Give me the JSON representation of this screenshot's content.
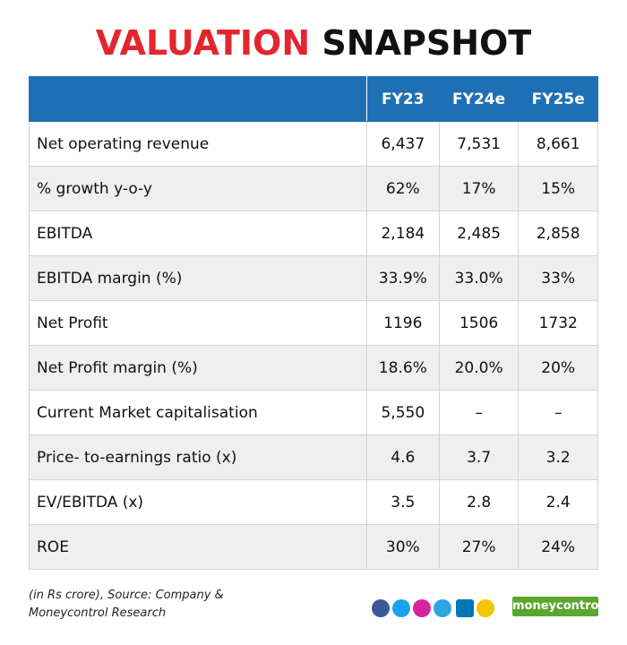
{
  "header": {
    "title_highlight": "VALUATION",
    "title_rest": "SNAPSHOT"
  },
  "table": {
    "columns": [
      "",
      "FY23",
      "FY24e",
      "FY25e"
    ],
    "rows": [
      [
        "Net operating revenue",
        "6,437",
        "7,531",
        "8,661"
      ],
      [
        "% growth y-o-y",
        "62%",
        "17%",
        "15%"
      ],
      [
        "EBITDA",
        "2,184",
        "2,485",
        "2,858"
      ],
      [
        "EBITDA margin (%)",
        "33.9%",
        "33.0%",
        "33%"
      ],
      [
        "Net Profit",
        "1196",
        "1506",
        "1732"
      ],
      [
        "Net Profit margin (%)",
        "18.6%",
        "20.0%",
        "20%"
      ],
      [
        "Current Market capitalisation",
        "5,550",
        "–",
        "–"
      ],
      [
        "Price- to-earnings ratio (x)",
        "4.6",
        "3.7",
        "3.2"
      ],
      [
        "EV/EBITDA (x)",
        "3.5",
        "2.8",
        "2.4"
      ],
      [
        "ROE",
        "30%",
        "27%",
        "24%"
      ]
    ]
  },
  "footer": {
    "note_lines": [
      "(in Rs crore), Source: Company &",
      "Moneycontrol Research"
    ],
    "brand": "moneycontrol"
  }
}
